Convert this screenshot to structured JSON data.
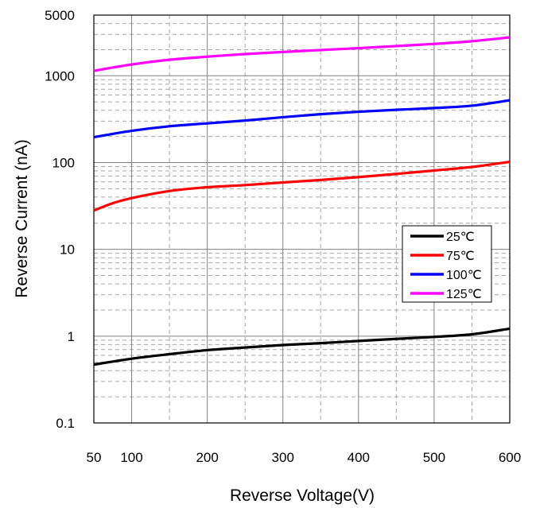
{
  "chart_data": {
    "type": "line",
    "title": "",
    "xlabel": "Reverse Voltage(V)",
    "ylabel": "Reverse Current (nA)",
    "xlim": [
      50,
      600
    ],
    "ylim": [
      0.1,
      5000
    ],
    "y_scale": "log",
    "grid": true,
    "legend_position": "right-center",
    "x_tick_labels": [
      "50",
      "100",
      "200",
      "300",
      "400",
      "500",
      "600"
    ],
    "y_tick_labels": [
      "0.1",
      "1",
      "10",
      "100",
      "1000",
      "5000"
    ],
    "series": [
      {
        "name": "25℃",
        "color": "#000000",
        "x": [
          50,
          100,
          150,
          200,
          250,
          300,
          350,
          400,
          450,
          500,
          550,
          600
        ],
        "values": [
          0.47,
          0.55,
          0.62,
          0.69,
          0.74,
          0.79,
          0.83,
          0.88,
          0.93,
          0.98,
          1.05,
          1.22
        ]
      },
      {
        "name": "75℃",
        "color": "#ff0000",
        "x": [
          50,
          75,
          100,
          150,
          200,
          250,
          300,
          350,
          400,
          450,
          500,
          550,
          600
        ],
        "values": [
          28,
          34,
          39,
          47,
          52,
          55,
          59,
          63,
          68,
          74,
          81,
          89,
          102
        ]
      },
      {
        "name": "100℃",
        "color": "#0000ff",
        "x": [
          50,
          100,
          150,
          200,
          250,
          300,
          350,
          400,
          450,
          500,
          550,
          600
        ],
        "values": [
          196,
          232,
          262,
          283,
          305,
          333,
          361,
          385,
          405,
          425,
          452,
          522
        ]
      },
      {
        "name": "125℃",
        "color": "#ff00ff",
        "x": [
          50,
          100,
          150,
          200,
          250,
          300,
          350,
          400,
          450,
          500,
          550,
          600
        ],
        "values": [
          1140,
          1350,
          1530,
          1660,
          1780,
          1880,
          1980,
          2080,
          2200,
          2330,
          2500,
          2770
        ]
      }
    ]
  }
}
